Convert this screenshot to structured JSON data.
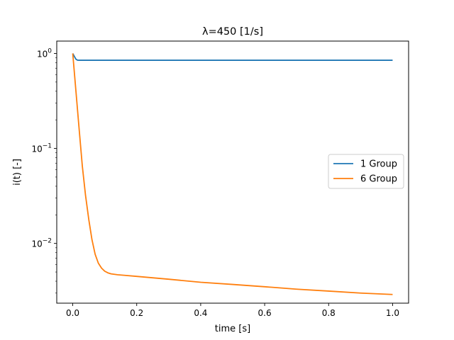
{
  "chart_data": {
    "type": "line",
    "title": "λ=450 [1/s]",
    "xlabel": "time [s]",
    "ylabel": "i(t) [-]",
    "xlim": [
      -0.05,
      1.05
    ],
    "ylim": [
      0.00235,
      1.35
    ],
    "yscale": "log",
    "grid": false,
    "legend_position": "center-right",
    "x_ticks": [
      0.0,
      0.2,
      0.4,
      0.6,
      0.8,
      1.0
    ],
    "x_tick_labels": [
      "0.0",
      "0.2",
      "0.4",
      "0.6",
      "0.8",
      "1.0"
    ],
    "y_ticks": [
      0.01,
      0.1,
      1
    ],
    "series": [
      {
        "name": "1 Group",
        "color": "#1f77b4",
        "x": [
          0.0,
          0.005,
          0.01,
          0.015,
          0.02,
          0.05,
          0.1,
          0.2,
          0.4,
          0.6,
          0.8,
          1.0
        ],
        "y": [
          1.0,
          0.93,
          0.87,
          0.85,
          0.848,
          0.848,
          0.848,
          0.848,
          0.848,
          0.848,
          0.848,
          0.848
        ]
      },
      {
        "name": "6 Group",
        "color": "#ff7f0e",
        "x": [
          0.0,
          0.01,
          0.02,
          0.03,
          0.04,
          0.05,
          0.06,
          0.07,
          0.08,
          0.09,
          0.1,
          0.11,
          0.12,
          0.14,
          0.16,
          0.2,
          0.3,
          0.4,
          0.5,
          0.6,
          0.7,
          0.8,
          0.9,
          1.0
        ],
        "y": [
          1.0,
          0.4,
          0.16,
          0.065,
          0.032,
          0.018,
          0.011,
          0.0077,
          0.0062,
          0.0055,
          0.0051,
          0.0049,
          0.00478,
          0.00468,
          0.00462,
          0.0045,
          0.0042,
          0.0039,
          0.0037,
          0.0035,
          0.0033,
          0.00315,
          0.003,
          0.0029
        ]
      }
    ]
  }
}
